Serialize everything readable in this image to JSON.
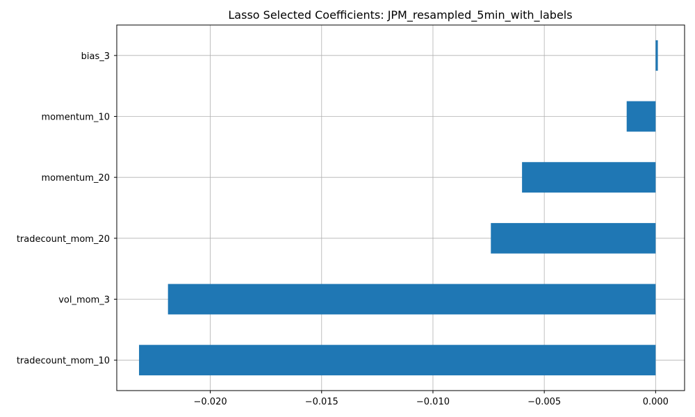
{
  "chart_data": {
    "type": "bar",
    "orientation": "horizontal",
    "title": "Lasso Selected Coefficients: JPM_resampled_5min_with_labels",
    "xlabel": "",
    "ylabel": "",
    "categories": [
      "tradecount_mom_10",
      "vol_mom_3",
      "tradecount_mom_20",
      "momentum_20",
      "momentum_10",
      "bias_3"
    ],
    "values": [
      -0.0232,
      -0.0219,
      -0.0074,
      -0.006,
      -0.0013,
      0.0001
    ],
    "xlim": [
      -0.0242,
      0.0013
    ],
    "xticks": [
      -0.02,
      -0.015,
      -0.01,
      -0.005,
      0.0
    ],
    "xtick_labels": [
      "−0.020",
      "−0.015",
      "−0.010",
      "−0.005",
      "0.000"
    ],
    "grid": true,
    "bar_color": "#1f77b4"
  }
}
